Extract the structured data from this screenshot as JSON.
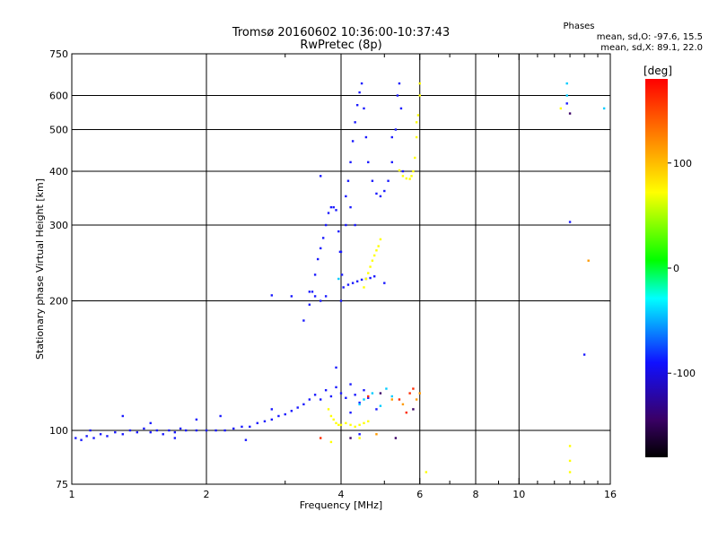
{
  "chart_data": {
    "type": "scatter",
    "title": "Tromsø 20160602 10:36:00-10:37:43",
    "subtitle": "RwPretec (8p)",
    "xlabel": "Frequency [MHz]",
    "ylabel": "Stationary phase Virtual Height [km]",
    "x_scale": "log",
    "y_scale": "log",
    "xlim": [
      1,
      16
    ],
    "ylim": [
      75,
      750
    ],
    "x_ticks": [
      1,
      2,
      4,
      6,
      8,
      10,
      16
    ],
    "x_gridlines": [
      2,
      4,
      6,
      8,
      10
    ],
    "y_ticks": [
      75,
      100,
      200,
      300,
      400,
      500,
      600,
      750
    ],
    "y_gridlines": [
      100,
      200,
      300,
      400,
      500,
      600
    ],
    "grid": true,
    "color_legend": {
      "title": "Phases",
      "lines": [
        "mean, sd,O: -97.6, 15.5",
        "mean, sd,X:  89.1, 22.0"
      ]
    },
    "colorbar": {
      "label": "[deg]",
      "range": [
        -180,
        180
      ],
      "ticks": [
        100,
        0,
        -100
      ]
    },
    "series": [
      {
        "color": "#1a1aff",
        "points": [
          [
            1.02,
            96
          ],
          [
            1.05,
            95
          ],
          [
            1.08,
            97
          ],
          [
            1.12,
            96
          ],
          [
            1.16,
            98
          ],
          [
            1.2,
            97
          ],
          [
            1.25,
            99
          ],
          [
            1.3,
            98
          ],
          [
            1.35,
            100
          ],
          [
            1.4,
            99
          ],
          [
            1.45,
            101
          ],
          [
            1.5,
            99
          ],
          [
            1.55,
            100
          ],
          [
            1.6,
            98
          ],
          [
            1.65,
            100
          ],
          [
            1.7,
            99
          ],
          [
            1.75,
            101
          ],
          [
            1.8,
            100
          ],
          [
            1.9,
            100
          ],
          [
            2.0,
            100
          ],
          [
            2.1,
            100
          ],
          [
            2.2,
            100
          ],
          [
            2.3,
            101
          ],
          [
            2.4,
            102
          ],
          [
            2.5,
            102
          ],
          [
            2.6,
            104
          ],
          [
            2.7,
            105
          ],
          [
            2.8,
            106
          ],
          [
            2.9,
            108
          ],
          [
            3.0,
            109
          ],
          [
            3.1,
            111
          ],
          [
            3.2,
            113
          ],
          [
            3.3,
            115
          ],
          [
            3.4,
            118
          ],
          [
            3.5,
            121
          ],
          [
            3.6,
            118
          ],
          [
            3.7,
            124
          ],
          [
            3.8,
            120
          ],
          [
            3.9,
            126
          ],
          [
            4.0,
            122
          ],
          [
            4.1,
            119
          ],
          [
            4.2,
            128
          ],
          [
            4.3,
            121
          ],
          [
            4.4,
            116
          ],
          [
            4.5,
            124
          ],
          [
            4.6,
            119
          ],
          [
            1.3,
            108
          ],
          [
            1.5,
            104
          ],
          [
            1.9,
            106
          ],
          [
            2.8,
            112
          ],
          [
            3.3,
            180
          ],
          [
            3.4,
            196
          ],
          [
            3.45,
            210
          ],
          [
            3.5,
            230
          ],
          [
            3.55,
            250
          ],
          [
            3.6,
            265
          ],
          [
            3.65,
            280
          ],
          [
            3.7,
            300
          ],
          [
            3.75,
            320
          ],
          [
            3.8,
            330
          ],
          [
            3.85,
            330
          ],
          [
            3.9,
            325
          ],
          [
            3.95,
            290
          ],
          [
            3.98,
            260
          ],
          [
            4.02,
            230
          ],
          [
            4.0,
            200
          ],
          [
            3.7,
            205
          ],
          [
            3.6,
            200
          ],
          [
            3.5,
            205
          ],
          [
            3.4,
            210
          ],
          [
            3.1,
            205
          ],
          [
            2.8,
            206
          ],
          [
            4.05,
            215
          ],
          [
            4.15,
            218
          ],
          [
            4.25,
            220
          ],
          [
            4.35,
            222
          ],
          [
            4.45,
            224
          ],
          [
            4.55,
            225
          ],
          [
            4.65,
            226
          ],
          [
            4.75,
            228
          ],
          [
            3.6,
            390
          ],
          [
            4.1,
            350
          ],
          [
            4.15,
            380
          ],
          [
            4.2,
            420
          ],
          [
            4.25,
            470
          ],
          [
            4.3,
            520
          ],
          [
            4.35,
            570
          ],
          [
            4.4,
            610
          ],
          [
            4.45,
            640
          ],
          [
            4.5,
            560
          ],
          [
            4.55,
            480
          ],
          [
            4.6,
            420
          ],
          [
            4.7,
            380
          ],
          [
            4.8,
            355
          ],
          [
            4.9,
            350
          ],
          [
            5.0,
            360
          ],
          [
            5.1,
            380
          ],
          [
            5.2,
            420
          ],
          [
            5.3,
            500
          ],
          [
            5.35,
            600
          ],
          [
            5.4,
            640
          ],
          [
            5.45,
            560
          ],
          [
            5.5,
            400
          ],
          [
            4.0,
            260
          ],
          [
            4.1,
            300
          ],
          [
            4.2,
            330
          ],
          [
            4.3,
            300
          ],
          [
            5.0,
            220
          ],
          [
            5.2,
            480
          ],
          [
            2.15,
            108
          ],
          [
            1.1,
            100
          ],
          [
            1.7,
            96
          ],
          [
            2.45,
            95
          ],
          [
            4.2,
            110
          ],
          [
            4.4,
            98
          ],
          [
            12.8,
            575
          ],
          [
            14.0,
            150
          ],
          [
            3.9,
            140
          ],
          [
            4.8,
            112
          ],
          [
            13.0,
            305
          ]
        ]
      },
      {
        "color": "#ffff00",
        "points": [
          [
            3.75,
            112
          ],
          [
            3.8,
            108
          ],
          [
            3.85,
            106
          ],
          [
            3.9,
            104
          ],
          [
            3.95,
            103
          ],
          [
            4.0,
            103
          ],
          [
            4.1,
            104
          ],
          [
            4.2,
            103
          ],
          [
            4.3,
            102
          ],
          [
            4.4,
            103
          ],
          [
            4.5,
            104
          ],
          [
            4.6,
            105
          ],
          [
            4.5,
            215
          ],
          [
            4.55,
            225
          ],
          [
            4.6,
            232
          ],
          [
            4.65,
            240
          ],
          [
            4.7,
            248
          ],
          [
            4.75,
            255
          ],
          [
            4.8,
            262
          ],
          [
            4.85,
            268
          ],
          [
            4.9,
            278
          ],
          [
            5.5,
            390
          ],
          [
            5.6,
            385
          ],
          [
            5.7,
            384
          ],
          [
            5.75,
            390
          ],
          [
            5.8,
            400
          ],
          [
            5.85,
            430
          ],
          [
            5.9,
            480
          ],
          [
            5.95,
            540
          ],
          [
            6.0,
            600
          ],
          [
            6.0,
            640
          ],
          [
            5.9,
            520
          ],
          [
            5.4,
            402
          ],
          [
            4.4,
            96
          ],
          [
            3.8,
            94
          ],
          [
            12.4,
            560
          ],
          [
            13.0,
            92
          ],
          [
            13.0,
            85
          ],
          [
            13.0,
            80
          ],
          [
            6.2,
            80
          ]
        ]
      },
      {
        "color": "#00ccff",
        "points": [
          [
            4.5,
            118
          ],
          [
            4.7,
            122
          ],
          [
            4.9,
            114
          ],
          [
            5.2,
            120
          ],
          [
            4.4,
            115
          ],
          [
            12.8,
            640
          ],
          [
            12.8,
            600
          ],
          [
            15.5,
            560
          ],
          [
            3.95,
            225
          ],
          [
            5.05,
            125
          ]
        ]
      },
      {
        "color": "#ff2a00",
        "points": [
          [
            5.7,
            122
          ],
          [
            5.4,
            118
          ],
          [
            5.6,
            110
          ],
          [
            4.6,
            120
          ],
          [
            5.8,
            125
          ],
          [
            3.6,
            96
          ]
        ]
      },
      {
        "color": "#ff9a00",
        "points": [
          [
            5.5,
            115
          ],
          [
            5.9,
            118
          ],
          [
            5.2,
            118
          ],
          [
            4.8,
            98
          ],
          [
            14.3,
            248
          ],
          [
            6.0,
            122
          ]
        ]
      },
      {
        "color": "#3a0066",
        "points": [
          [
            4.9,
            122
          ],
          [
            5.8,
            112
          ],
          [
            13.0,
            545
          ],
          [
            5.3,
            96
          ],
          [
            4.2,
            96
          ]
        ]
      }
    ]
  }
}
